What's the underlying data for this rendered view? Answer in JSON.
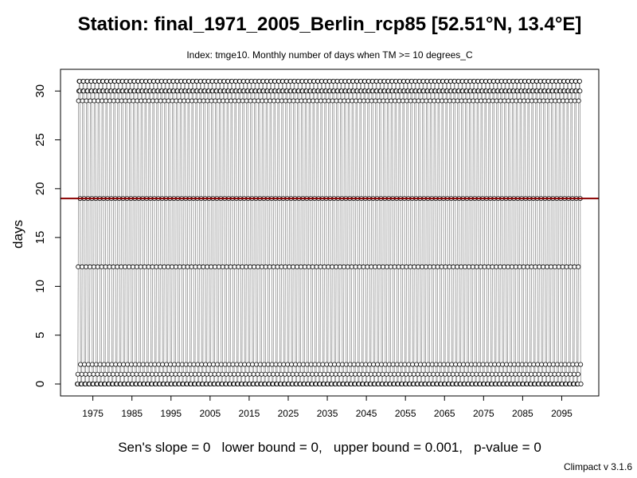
{
  "chart_data": {
    "type": "line",
    "title": "Station: final_1971_2005_Berlin_rcp85 [52.51°N, 13.4°E]",
    "subtitle": "Index: tmge10. Monthly number of days when TM >= 10 degrees_C",
    "ylabel": "days",
    "xlabel": "",
    "ylim": [
      0,
      31
    ],
    "xlim": [
      1971,
      2100
    ],
    "x_start": 1971,
    "x_end": 2100,
    "yticks": [
      0,
      5,
      10,
      15,
      20,
      25,
      30
    ],
    "xticks": [
      1975,
      1985,
      1995,
      2005,
      2015,
      2025,
      2035,
      2045,
      2055,
      2065,
      2075,
      2085,
      2095
    ],
    "monthly_pattern_days": [
      0,
      0,
      1,
      12,
      29,
      30,
      31,
      31,
      30,
      19,
      2,
      0
    ],
    "trend_line_value": 19,
    "series": [
      {
        "marker": "circle",
        "line_color": "#808080",
        "x_frequency": "monthly"
      }
    ],
    "trend_color": "#8b0000",
    "footer": "Sen's slope = 0   lower bound = 0,   upper bound = 0.001,   p-value = 0",
    "credit": "Climpact v 3.1.6",
    "grid": false
  }
}
